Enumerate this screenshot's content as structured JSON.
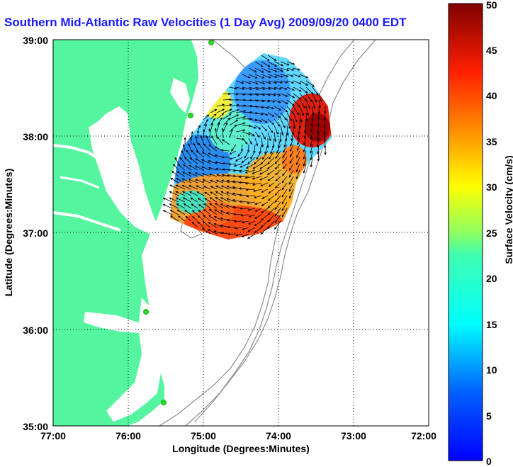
{
  "title": "Southern Mid-Atlantic Raw Velocities (1 Day Avg) 2009/09/20 0400 EDT",
  "xlabel": "Longitude (Degrees:Minutes)",
  "ylabel": "Latitude (Degrees:Minutes)",
  "colorbar_label": "Surface Velocity (cm/s)",
  "x_ticks": [
    "77:00",
    "76:00",
    "75:00",
    "74:00",
    "73:00",
    "72:00"
  ],
  "y_ticks": [
    "39:00",
    "38:00",
    "37:00",
    "36:00",
    "35:00"
  ],
  "colorbar_ticks": [
    "0",
    "5",
    "10",
    "15",
    "20",
    "25",
    "30",
    "35",
    "40",
    "45",
    "50"
  ],
  "colors": {
    "land": "#55f5a0",
    "title": "#1a1aff",
    "station": "#22dd22",
    "bathymetry": "#8c8c8c"
  },
  "chart_data": {
    "type": "heatmap",
    "title": "Southern Mid-Atlantic Raw Velocities (1 Day Avg) 2009/09/20 0400 EDT",
    "xlabel": "Longitude (Degrees:Minutes)",
    "ylabel": "Latitude (Degrees:Minutes)",
    "xlim": [
      -77,
      -72
    ],
    "ylim": [
      35,
      39
    ],
    "grid": true,
    "colorbar": {
      "label": "Surface Velocity (cm/s)",
      "range": [
        0,
        50
      ],
      "colormap": "jet"
    },
    "stations": [
      {
        "lon": -75.07,
        "lat": 38.98
      },
      {
        "lon": -75.15,
        "lat": 38.23
      },
      {
        "lon": -75.75,
        "lat": 36.18
      },
      {
        "lon": -75.47,
        "lat": 35.26
      }
    ]
  }
}
